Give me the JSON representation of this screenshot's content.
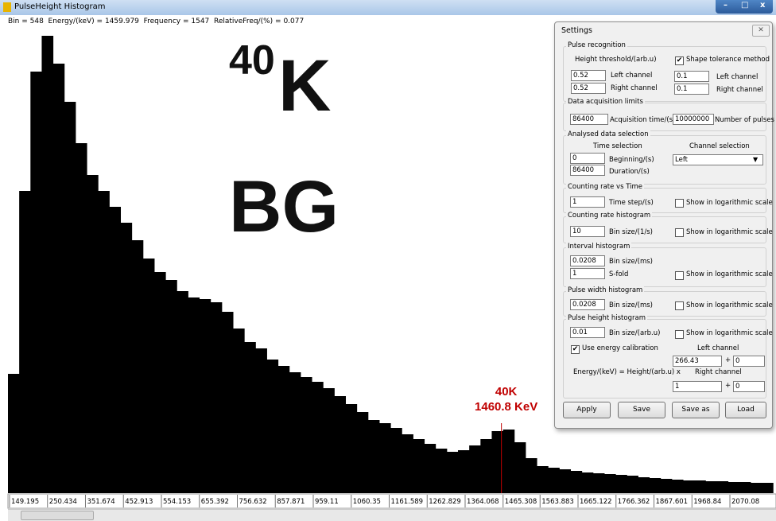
{
  "window": {
    "title": "PulseHeight Histogram",
    "status": "Bin = 548  Energy/(keV) = 1459.979  Frequency = 1547  RelativeFreq/(%) = 0.077"
  },
  "overlay": {
    "mass_number": "40",
    "symbol": "K",
    "label": "BG"
  },
  "chart_data": {
    "type": "histogram",
    "bins": [
      145,
      175,
      205,
      235,
      265,
      295,
      325,
      355,
      385,
      415,
      445,
      475,
      505,
      535,
      565,
      595,
      625,
      655,
      685,
      715,
      745,
      775,
      805,
      835,
      865,
      895,
      925,
      955,
      985,
      1015,
      1045,
      1075,
      1105,
      1135,
      1165,
      1195,
      1225,
      1255,
      1285,
      1315,
      1345,
      1375,
      1405,
      1435,
      1465,
      1495,
      1525,
      1555,
      1585,
      1615,
      1645,
      1675,
      1705,
      1735,
      1765,
      1795,
      1825,
      1855,
      1885,
      1915,
      1945,
      1975,
      2005,
      2035,
      2065,
      2095,
      2125,
      2155,
      2185
    ],
    "values": [
      3000,
      7600,
      10600,
      11500,
      10800,
      9840,
      8800,
      8000,
      7600,
      7200,
      6800,
      6360,
      5900,
      5560,
      5360,
      5080,
      4920,
      4880,
      4800,
      4560,
      4140,
      3800,
      3640,
      3360,
      3200,
      3040,
      2920,
      2800,
      2640,
      2440,
      2240,
      2040,
      1840,
      1760,
      1640,
      1480,
      1360,
      1240,
      1120,
      1040,
      1080,
      1200,
      1360,
      1560,
      1600,
      1280,
      880,
      680,
      640,
      600,
      560,
      520,
      500,
      480,
      460,
      440,
      400,
      380,
      360,
      340,
      320,
      320,
      300,
      300,
      280,
      280,
      260,
      260
    ],
    "color": "#000000",
    "xlim": [
      145,
      2193
    ],
    "ylim": [
      0,
      12000
    ],
    "xticks": [
      149.195,
      250.434,
      351.674,
      452.913,
      554.153,
      655.392,
      756.632,
      857.871,
      959.11,
      1060.35,
      1161.589,
      1262.829,
      1364.068,
      1465.308,
      1563.883,
      1665.122,
      1766.362,
      1867.601,
      1968.84,
      2070.08
    ],
    "marker": {
      "x": 1460.8,
      "color": "#c00000",
      "label": [
        "40K",
        "1460.8 KeV"
      ]
    }
  },
  "settings": {
    "title": "Settings",
    "pulse_recognition": {
      "title": "Pulse recognition",
      "height_threshold": "Height threshold/(arb.u)",
      "shape_tolerance": "Shape tolerance method",
      "left_value": "0.52",
      "left_label": "Left channel",
      "right_value": "0.52",
      "right_label": "Right channel",
      "tol_left_value": "0.1",
      "tol_left_label": "Left channel",
      "tol_right_value": "0.1",
      "tol_right_label": "Right channel"
    },
    "acquisition": {
      "title": "Data acquisition limits",
      "time_value": "86400",
      "time_label": "Acquisition time/(s)",
      "pulses_value": "10000000",
      "pulses_label": "Number of pulses"
    },
    "selection": {
      "title": "Analysed data selection",
      "time_heading": "Time selection",
      "channel_heading": "Channel selection",
      "begin_value": "0",
      "begin_label": "Beginning/(s)",
      "duration_value": "86400",
      "duration_label": "Duration/(s)",
      "channel": "Left"
    },
    "rate_vs_time": {
      "title": "Counting rate vs Time",
      "value": "1",
      "label": "Time step/(s)",
      "log": "Show in logarithmic scale"
    },
    "rate_hist": {
      "title": "Counting rate histogram",
      "value": "10",
      "label": "Bin size/(1/s)",
      "log": "Show in logarithmic scale"
    },
    "interval_hist": {
      "title": "Interval histogram",
      "value": "0.0208",
      "label": "Bin size/(ms)",
      "fold_value": "1",
      "fold_label": "S-fold",
      "log": "Show in logarithmic scale"
    },
    "width_hist": {
      "title": "Pulse width histogram",
      "value": "0.0208",
      "label": "Bin size/(ms)",
      "log": "Show in logarithmic scale"
    },
    "height_hist": {
      "title": "Pulse height histogram",
      "value": "0.01",
      "label": "Bin size/(arb.u)",
      "log": "Show in logarithmic scale",
      "calibration": "Use energy calibration",
      "left_heading": "Left channel",
      "left_gain": "266.43",
      "plus": "+",
      "left_offset": "0",
      "formula": "Energy/(keV) = Height/(arb.u) x",
      "right_heading": "Right channel",
      "right_gain": "1",
      "right_offset": "0"
    },
    "buttons": [
      "Apply",
      "Save",
      "Save as",
      "Load"
    ]
  }
}
